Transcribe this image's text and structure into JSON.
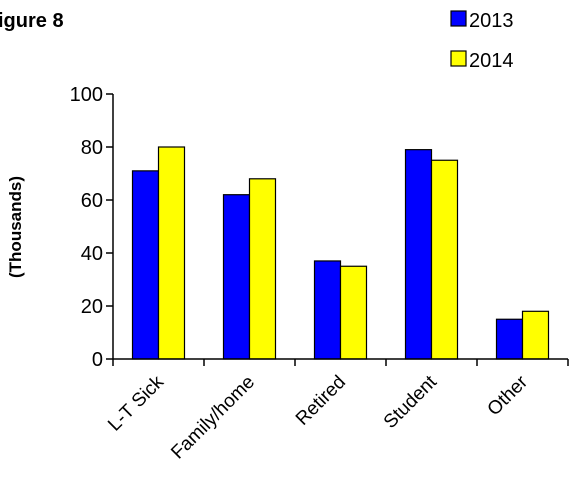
{
  "figure_label": "igure 8",
  "chart_data": {
    "type": "bar",
    "title": "",
    "xlabel": "",
    "ylabel": "(Thousands)",
    "ylim": [
      0,
      100
    ],
    "yticks": [
      0,
      20,
      40,
      60,
      80,
      100
    ],
    "grid": false,
    "legend_position": "top-right",
    "categories": [
      "L-T Sick",
      "Family/home",
      "Retired",
      "Student",
      "Other"
    ],
    "series": [
      {
        "name": "2013",
        "color": "#0000ff",
        "values": [
          71,
          62,
          37,
          79,
          15
        ]
      },
      {
        "name": "2014",
        "color": "#ffff00",
        "values": [
          80,
          68,
          35,
          75,
          18
        ]
      }
    ]
  }
}
